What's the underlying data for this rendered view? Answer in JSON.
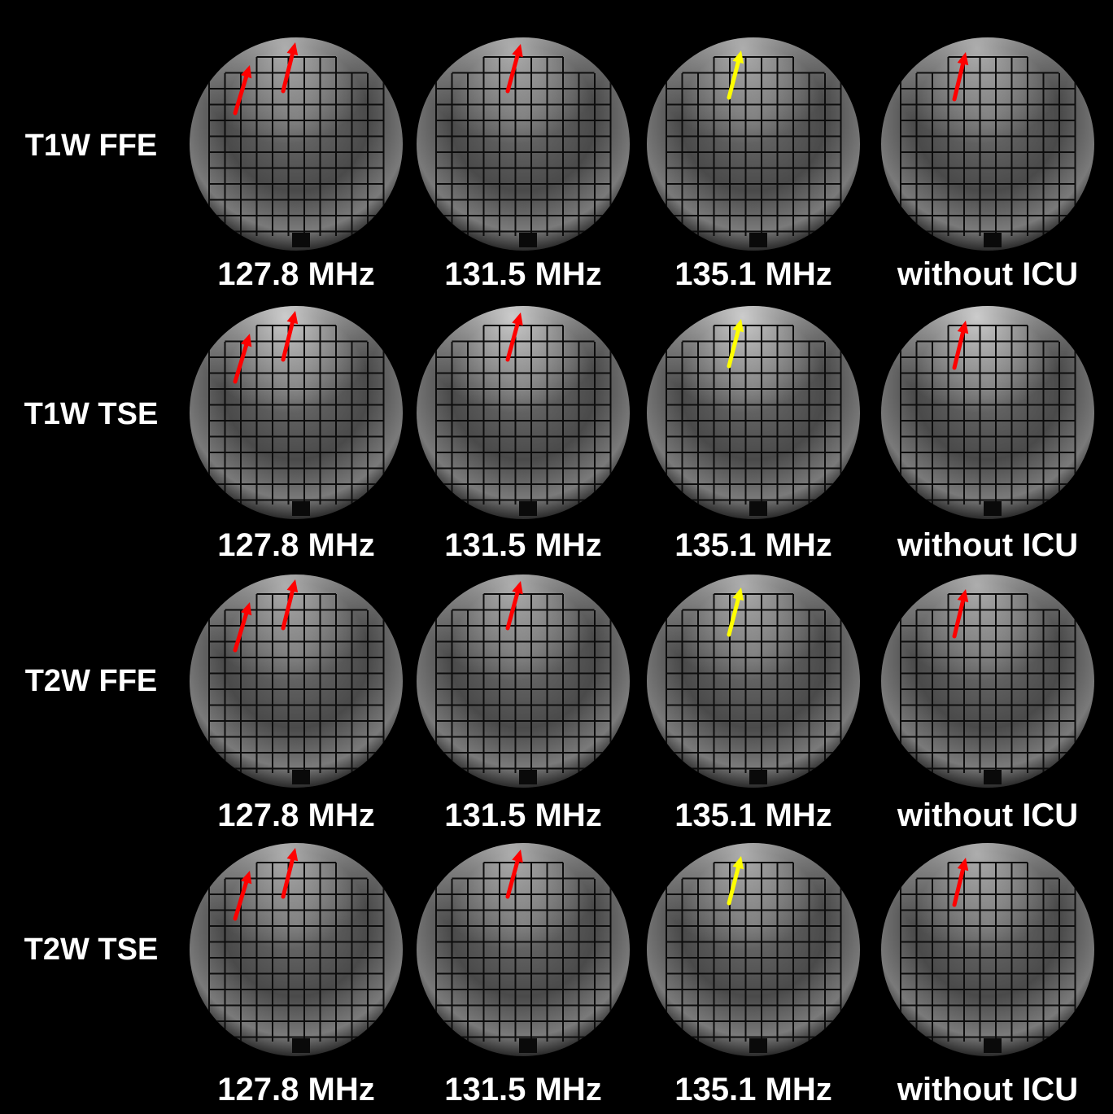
{
  "figure": {
    "rows": [
      {
        "sequence": "T1W FFE"
      },
      {
        "sequence": "T1W TSE"
      },
      {
        "sequence": "T2W FFE"
      },
      {
        "sequence": "T2W TSE"
      }
    ],
    "columns": [
      {
        "label": "127.8 MHz"
      },
      {
        "label": "131.5 MHz"
      },
      {
        "label": "135.1 MHz"
      },
      {
        "label": "without ICU"
      }
    ],
    "arrow_colors": {
      "red": "#ff0000",
      "yellow": "#ffff00"
    }
  }
}
